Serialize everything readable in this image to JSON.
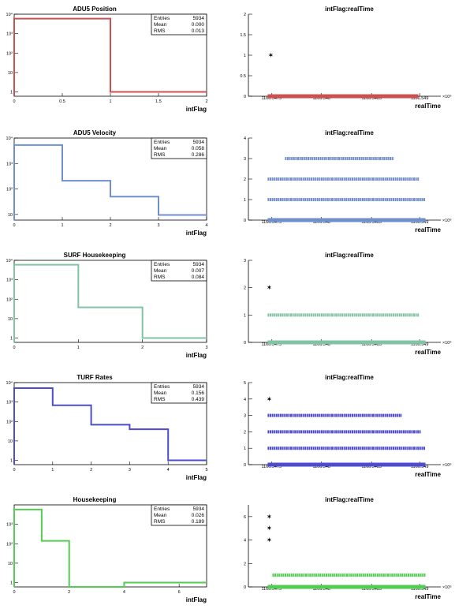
{
  "colors": {
    "adu5_position": "#cc5050",
    "adu5_velocity": "#6f90cc",
    "surf_housekeeping": "#80c4a4",
    "turf_rates": "#4c4ccc",
    "housekeeping": "#52cc52"
  },
  "chart_data": [
    {
      "type": "histogram",
      "key": "adu5_position",
      "title": "ADU5 Position",
      "xlabel": "intFlag",
      "xlim": [
        0,
        2
      ],
      "xticks": [
        "0",
        "0.5",
        "1",
        "1.5",
        "2"
      ],
      "yscale": "log",
      "ylim": [
        0.6,
        10000
      ],
      "yticks": [
        "1",
        "10",
        "10²",
        "10³",
        "10⁴"
      ],
      "bins": [
        [
          0,
          1,
          5934
        ],
        [
          1,
          2,
          1
        ]
      ],
      "stats": {
        "entries_label": "Entries",
        "entries": "5934",
        "mean_label": "Mean",
        "mean": "0.000",
        "rms_label": "RMS",
        "rms": "0.013"
      }
    },
    {
      "type": "scatter",
      "key": "adu5_position_time",
      "title": "intFlag:realTime",
      "xlabel": "realTime",
      "ylim": [
        0,
        2
      ],
      "yticks": [
        "0",
        "0.5",
        "1",
        "1.5",
        "2"
      ],
      "xticks": [
        "1166.5475",
        "1166.548",
        "1166.5485",
        "1166.549"
      ],
      "x_exponent": "×10⁶",
      "points": [
        [
          0,
          0.0,
          0.955
        ],
        [
          1,
          0.01,
          0.01
        ]
      ]
    },
    {
      "type": "histogram",
      "key": "adu5_velocity",
      "title": "ADU5 Velocity",
      "xlabel": "intFlag",
      "xlim": [
        0,
        4
      ],
      "xticks": [
        "0",
        "1",
        "2",
        "3",
        "4"
      ],
      "yscale": "log",
      "ylim": [
        6,
        10000
      ],
      "yticks": [
        "10",
        "10²",
        "10³",
        "10⁴"
      ],
      "bins": [
        [
          0,
          1,
          5300
        ],
        [
          1,
          2,
          210
        ],
        [
          2,
          3,
          50
        ],
        [
          3,
          4,
          9.5
        ]
      ],
      "stats": {
        "entries_label": "Entries",
        "entries": "5934",
        "mean_label": "Mean",
        "mean": "0.058",
        "rms_label": "RMS",
        "rms": "0.286"
      }
    },
    {
      "type": "scatter",
      "key": "adu5_velocity_time",
      "title": "intFlag:realTime",
      "xlabel": "realTime",
      "ylim": [
        0,
        4
      ],
      "yticks": [
        "0",
        "1",
        "2",
        "3",
        "4"
      ],
      "xticks": [
        "1166.5475",
        "1166.548",
        "1166.5485",
        "1166.549"
      ],
      "x_exponent": "×10⁶",
      "points": [
        [
          0,
          0.0,
          1.0
        ],
        [
          1,
          0.0,
          1.0
        ],
        [
          2,
          0.0,
          0.96
        ],
        [
          3,
          0.11,
          0.8
        ]
      ]
    },
    {
      "type": "histogram",
      "key": "surf_housekeeping",
      "title": "SURF Housekeeping",
      "xlabel": "intFlag",
      "xlim": [
        0,
        3
      ],
      "xticks": [
        "0",
        "1",
        "2",
        "3"
      ],
      "yscale": "log",
      "ylim": [
        0.6,
        10000
      ],
      "yticks": [
        "1",
        "10",
        "10²",
        "10³",
        "10⁴"
      ],
      "bins": [
        [
          0,
          1,
          5900
        ],
        [
          1,
          2,
          38
        ],
        [
          2,
          3,
          1
        ]
      ],
      "stats": {
        "entries_label": "Entries",
        "entries": "5934",
        "mean_label": "Mean",
        "mean": "0.007",
        "rms_label": "RMS",
        "rms": "0.084"
      }
    },
    {
      "type": "scatter",
      "key": "surf_housekeeping_time",
      "title": "intFlag:realTime",
      "xlabel": "realTime",
      "ylim": [
        0,
        3
      ],
      "yticks": [
        "0",
        "1",
        "2",
        "3"
      ],
      "xticks": [
        "1166.5475",
        "1166.548",
        "1166.5485",
        "1166.549"
      ],
      "x_exponent": "×10⁶",
      "points": [
        [
          0,
          0.0,
          1.0
        ],
        [
          1,
          0.0,
          0.96
        ],
        [
          2,
          0.0,
          0.0
        ]
      ]
    },
    {
      "type": "histogram",
      "key": "turf_rates",
      "title": "TURF Rates",
      "xlabel": "intFlag",
      "xlim": [
        0,
        5
      ],
      "xticks": [
        "0",
        "1",
        "2",
        "3",
        "4",
        "5"
      ],
      "yscale": "log",
      "ylim": [
        0.6,
        10000
      ],
      "yticks": [
        "1",
        "10",
        "10²",
        "10³",
        "10⁴"
      ],
      "bins": [
        [
          0,
          1,
          5200
        ],
        [
          1,
          2,
          680
        ],
        [
          2,
          3,
          68
        ],
        [
          3,
          4,
          40
        ],
        [
          4,
          5,
          1
        ]
      ],
      "stats": {
        "entries_label": "Entries",
        "entries": "5934",
        "mean_label": "Mean",
        "mean": "0.156",
        "rms_label": "RMS",
        "rms": "0.439"
      }
    },
    {
      "type": "scatter",
      "key": "turf_rates_time",
      "title": "intFlag:realTime",
      "xlabel": "realTime",
      "ylim": [
        0,
        5
      ],
      "yticks": [
        "0",
        "1",
        "2",
        "3",
        "4",
        "5"
      ],
      "xticks": [
        "1166.5475",
        "1166.548",
        "1166.5485",
        "1166.549"
      ],
      "x_exponent": "×10⁶",
      "points": [
        [
          0,
          0.0,
          1.0
        ],
        [
          1,
          0.0,
          1.0
        ],
        [
          2,
          0.0,
          0.97
        ],
        [
          3,
          0.0,
          0.85
        ],
        [
          4,
          0.0,
          0.0
        ]
      ]
    },
    {
      "type": "histogram",
      "key": "housekeeping",
      "title": "Housekeeping",
      "xlabel": "intFlag",
      "xlim": [
        0,
        7
      ],
      "xticks": [
        "0",
        "2",
        "4",
        "6"
      ],
      "yscale": "log",
      "ylim": [
        0.6,
        10000
      ],
      "yticks": [
        "1",
        "10",
        "10²",
        "10³"
      ],
      "bins": [
        [
          0,
          1,
          5750
        ],
        [
          1,
          2,
          140
        ],
        [
          2,
          4,
          0.4
        ],
        [
          4,
          7,
          1
        ]
      ],
      "stats": {
        "entries_label": "Entries",
        "entries": "5934",
        "mean_label": "Mean",
        "mean": "0.026",
        "rms_label": "RMS",
        "rms": "0.189"
      }
    },
    {
      "type": "scatter",
      "key": "housekeeping_time",
      "title": "intFlag:realTime",
      "xlabel": "realTime",
      "ylim": [
        0,
        7
      ],
      "yticks": [
        "0",
        "2",
        "4",
        "6"
      ],
      "xticks": [
        "1166.5475",
        "1166.548",
        "1166.5485",
        "1166.549"
      ],
      "x_exponent": "×10⁶",
      "points": [
        [
          0,
          0.0,
          1.0
        ],
        [
          1,
          0.03,
          1.0
        ],
        [
          4,
          0.0,
          0.0
        ],
        [
          5,
          0.0,
          0.0
        ],
        [
          6,
          0.0,
          0.0
        ]
      ]
    }
  ]
}
